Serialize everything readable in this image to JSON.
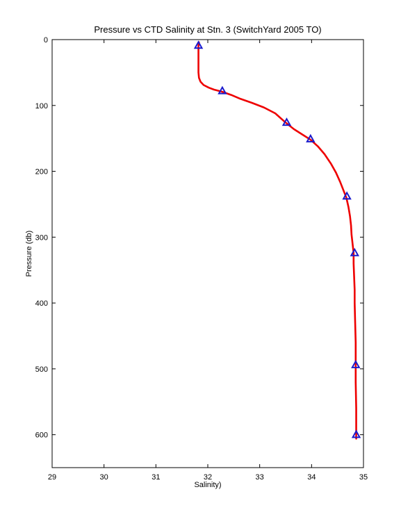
{
  "chart_data": {
    "type": "line",
    "title": "Pressure vs CTD Salinity at Stn. 3 (SwitchYard 2005 TO)",
    "xlabel": "Salinity)",
    "ylabel": "Pressure (db)",
    "xlim": [
      29,
      35
    ],
    "ylim": [
      0,
      650
    ],
    "y_reversed": true,
    "grid": false,
    "xticks": [
      29,
      30,
      31,
      32,
      33,
      34,
      35
    ],
    "yticks": [
      0,
      100,
      200,
      300,
      400,
      500,
      600
    ],
    "profile": {
      "color": "#ee0000",
      "points": [
        [
          31.83,
          4
        ],
        [
          31.82,
          10
        ],
        [
          31.82,
          20
        ],
        [
          31.82,
          30
        ],
        [
          31.82,
          40
        ],
        [
          31.82,
          50
        ],
        [
          31.83,
          58
        ],
        [
          31.86,
          64
        ],
        [
          31.92,
          69
        ],
        [
          32.02,
          73
        ],
        [
          32.12,
          76
        ],
        [
          32.27,
          79
        ],
        [
          32.45,
          84
        ],
        [
          32.63,
          90
        ],
        [
          32.85,
          96
        ],
        [
          33.08,
          103
        ],
        [
          33.3,
          112
        ],
        [
          33.5,
          126
        ],
        [
          33.66,
          136
        ],
        [
          33.82,
          144
        ],
        [
          33.98,
          152
        ],
        [
          34.12,
          162
        ],
        [
          34.25,
          174
        ],
        [
          34.37,
          188
        ],
        [
          34.47,
          202
        ],
        [
          34.55,
          216
        ],
        [
          34.61,
          228
        ],
        [
          34.67,
          240
        ],
        [
          34.71,
          254
        ],
        [
          34.74,
          268
        ],
        [
          34.76,
          282
        ],
        [
          34.77,
          296
        ],
        [
          34.79,
          310
        ],
        [
          34.81,
          324
        ],
        [
          34.81,
          340
        ],
        [
          34.82,
          360
        ],
        [
          34.83,
          380
        ],
        [
          34.83,
          400
        ],
        [
          34.84,
          430
        ],
        [
          34.85,
          460
        ],
        [
          34.85,
          494
        ],
        [
          34.85,
          520
        ],
        [
          34.86,
          560
        ],
        [
          34.86,
          601
        ],
        [
          34.86,
          606
        ]
      ]
    },
    "bottle_samples": {
      "marker": "triangle",
      "color": "#1a1acc",
      "points": [
        [
          31.82,
          9
        ],
        [
          32.28,
          78
        ],
        [
          33.52,
          126
        ],
        [
          33.98,
          151
        ],
        [
          34.68,
          238
        ],
        [
          34.83,
          324
        ],
        [
          34.85,
          494
        ],
        [
          34.86,
          600
        ]
      ]
    }
  }
}
